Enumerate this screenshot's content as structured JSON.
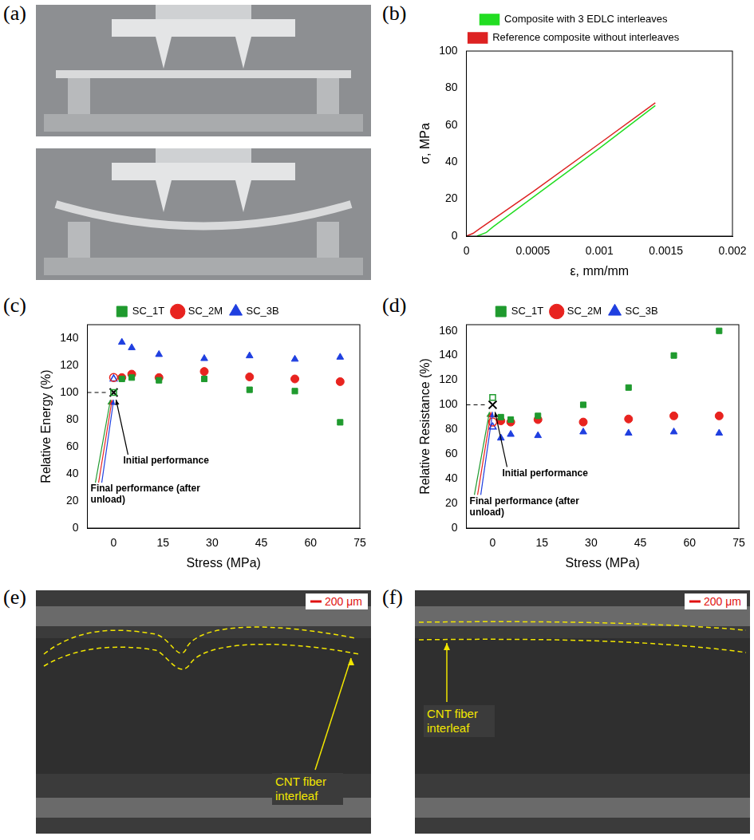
{
  "chart_data": [
    {
      "panel_label": "(b)",
      "type": "line",
      "grid": false,
      "legend": "top",
      "x_label": "ε, mm/mm",
      "y_label": "σ, MPa",
      "xlim": [
        0,
        0.002
      ],
      "xticks": [
        0,
        0.0005,
        0.001,
        0.0015,
        0.002
      ],
      "ylim": [
        0,
        100
      ],
      "yticks": [
        0,
        20,
        40,
        60,
        80,
        100
      ],
      "series": [
        {
          "name": "Composite with 3 EDLC interleaves",
          "color": "#22dd22",
          "line_style": "solid",
          "x": [
            8e-05,
            0.00015,
            0.0002,
            0.0005,
            0.001,
            0.00142
          ],
          "values": [
            0,
            2,
            5,
            21,
            47.5,
            70.5
          ]
        },
        {
          "name": "Reference composite without interleaves",
          "color": "#dd2222",
          "line_style": "solid",
          "x": [
            0,
            5e-05,
            0.0001,
            0.0005,
            0.001,
            0.00142
          ],
          "values": [
            0,
            1.5,
            4,
            24,
            50,
            72
          ]
        }
      ]
    },
    {
      "panel_label": "(c)",
      "type": "scatter",
      "grid": false,
      "legend": "top",
      "x_label": "Stress (MPa)",
      "y_label": "Relative Energy (%)",
      "xlim": [
        -8,
        75
      ],
      "xticks": [
        0,
        15,
        30,
        45,
        60,
        75
      ],
      "ylim": [
        0,
        150
      ],
      "yticks": [
        0,
        20,
        40,
        60,
        80,
        100,
        120,
        140
      ],
      "x": [
        2.5,
        5.5,
        13.8,
        27.6,
        41.4,
        55.2,
        69
      ],
      "initial": {
        "x": 0,
        "value": 100,
        "marker": "x",
        "color": "#000000"
      },
      "annotations": {
        "initial": "Initial performance",
        "final": "Final performance (after unload)"
      },
      "series": [
        {
          "name": "SC_1T",
          "color": "#1f9a2e",
          "marker": "square",
          "values": [
            110,
            111,
            109,
            110,
            102,
            101,
            78
          ],
          "final": {
            "x": 0,
            "value": 100
          }
        },
        {
          "name": "SC_2M",
          "color": "#e8231f",
          "marker": "circle",
          "values": [
            111,
            113.5,
            111,
            115.5,
            111.5,
            110,
            108
          ],
          "final": {
            "x": 0,
            "value": 111
          }
        },
        {
          "name": "SC_3B",
          "color": "#1f3fe0",
          "marker": "triangle",
          "values": [
            137,
            133,
            128,
            125,
            127,
            124.5,
            126
          ],
          "final": {
            "x": 0,
            "value": 110
          }
        }
      ]
    },
    {
      "panel_label": "(d)",
      "type": "scatter",
      "grid": false,
      "legend": "top",
      "x_label": "Stress (MPa)",
      "y_label": "Relative Resistance (%)",
      "xlim": [
        -8,
        75
      ],
      "xticks": [
        0,
        15,
        30,
        45,
        60,
        75
      ],
      "ylim": [
        0,
        165
      ],
      "yticks": [
        0,
        20,
        40,
        60,
        80,
        100,
        120,
        140,
        160
      ],
      "x": [
        2.5,
        5.5,
        13.8,
        27.6,
        41.4,
        55.2,
        69
      ],
      "initial": {
        "x": 0,
        "value": 100,
        "marker": "x",
        "color": "#000000"
      },
      "annotations": {
        "initial": "Initial performance",
        "final": "Final performance (after unload)"
      },
      "series": [
        {
          "name": "SC_1T",
          "color": "#1f9a2e",
          "marker": "square",
          "values": [
            90,
            88,
            91,
            100,
            114,
            140,
            160
          ],
          "final": {
            "x": 0,
            "value": 106
          }
        },
        {
          "name": "SC_2M",
          "color": "#e8231f",
          "marker": "circle",
          "values": [
            87,
            86,
            88,
            86,
            88.5,
            91,
            91
          ],
          "final": {
            "x": 0,
            "value": 86
          }
        },
        {
          "name": "SC_3B",
          "color": "#1f3fe0",
          "marker": "triangle",
          "values": [
            73,
            76,
            75,
            78,
            77,
            78,
            77
          ],
          "final": {
            "x": 0,
            "value": 82
          }
        }
      ]
    }
  ],
  "images": [
    {
      "panel_label": "(a)"
    },
    {
      "panel_label": "(e)",
      "scale_bar": "200 μm",
      "annotation": "CNT fiber interleaf"
    },
    {
      "panel_label": "(f)",
      "scale_bar": "200 μm",
      "annotation": "CNT fiber interleaf"
    }
  ]
}
